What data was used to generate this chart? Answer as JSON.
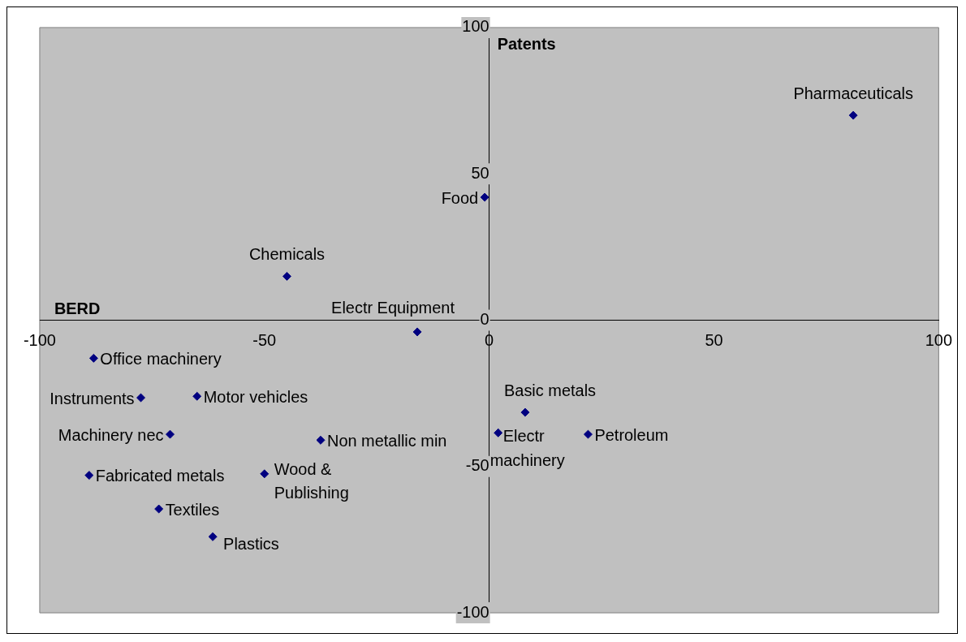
{
  "chart_data": {
    "type": "scatter",
    "xlabel": "BERD",
    "ylabel": "Patents",
    "xlim": [
      -100,
      100
    ],
    "ylim": [
      -100,
      100
    ],
    "xticks": [
      -100,
      -50,
      0,
      50,
      100
    ],
    "yticks": [
      -100,
      -50,
      0,
      50,
      100
    ],
    "grid": false,
    "legend": false,
    "marker": "diamond",
    "series": [
      {
        "color": "#000080",
        "x": [
          81,
          -1,
          -45,
          -16,
          -88,
          -77.5,
          -65,
          -71,
          -37.5,
          -89,
          -50,
          -73.5,
          -61.5,
          8,
          2,
          22
        ],
        "values": [
          70,
          42,
          15,
          -4,
          -13,
          -26.5,
          -26,
          -39,
          -41,
          -53,
          -52.5,
          -64.5,
          -74,
          -31.5,
          -38.5,
          -39
        ]
      }
    ],
    "annotations": [
      {
        "text": "Pharmaceuticals",
        "x": 81,
        "y": 70
      },
      {
        "text": "Food",
        "x": -1,
        "y": 42
      },
      {
        "text": "Chemicals",
        "x": -45,
        "y": 15
      },
      {
        "text": "Electr Equipment",
        "x": -16,
        "y": -4
      },
      {
        "text": "Office machinery",
        "x": -88,
        "y": -13
      },
      {
        "text": "Instruments",
        "x": -77.5,
        "y": -26.5
      },
      {
        "text": "Motor vehicles",
        "x": -65,
        "y": -26
      },
      {
        "text": "Machinery nec",
        "x": -71,
        "y": -39
      },
      {
        "text": "Non metallic min",
        "x": -37.5,
        "y": -41
      },
      {
        "text": "Fabricated metals",
        "x": -89,
        "y": -53
      },
      {
        "text": "Wood & Publishing",
        "x": -50,
        "y": -52.5
      },
      {
        "text": "Textiles",
        "x": -73.5,
        "y": -64.5
      },
      {
        "text": "Plastics",
        "x": -61.5,
        "y": -74
      },
      {
        "text": "Basic metals",
        "x": 8,
        "y": -31.5
      },
      {
        "text": "Electr machinery",
        "x": 2,
        "y": -38.5
      },
      {
        "text": "Petroleum",
        "x": 22,
        "y": -39
      }
    ]
  }
}
